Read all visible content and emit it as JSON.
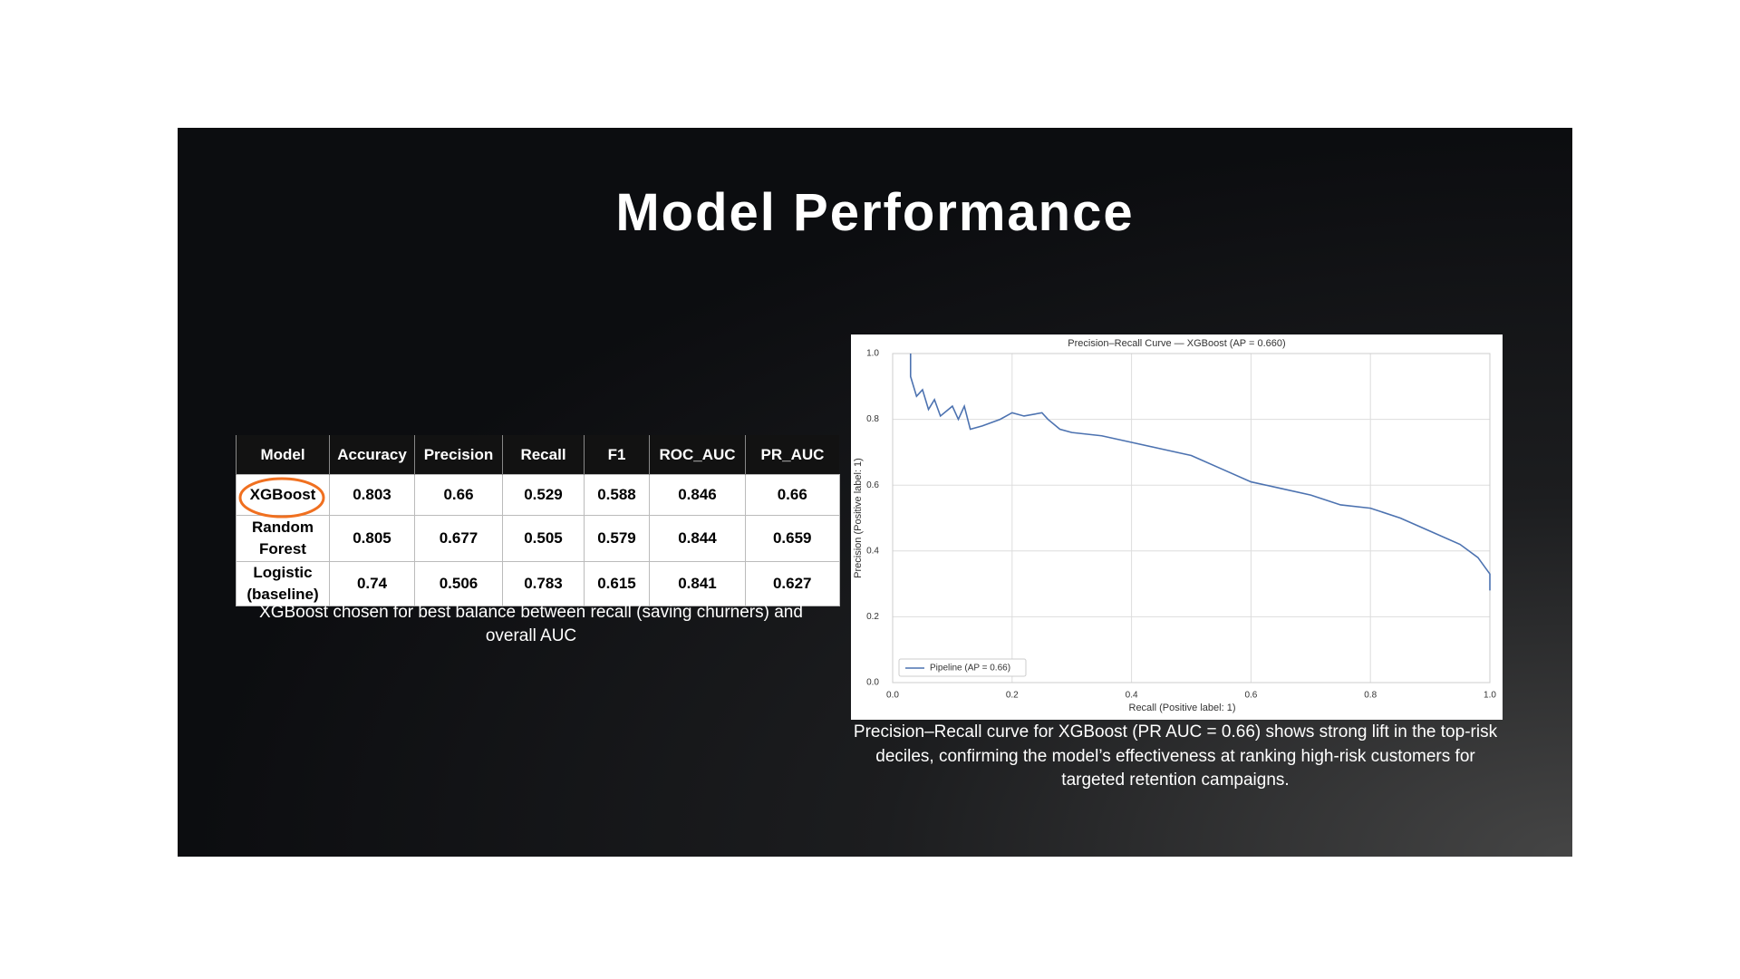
{
  "title": "Model Performance",
  "table": {
    "header": [
      "Model",
      "Accuracy",
      "Precision",
      "Recall",
      "F1",
      "ROC_AUC",
      "PR_AUC"
    ],
    "rows": [
      [
        "XGBoost",
        "0.803",
        "0.66",
        "0.529",
        "0.588",
        "0.846",
        "0.66"
      ],
      [
        "Random Forest",
        "0.805",
        "0.677",
        "0.505",
        "0.579",
        "0.844",
        "0.659"
      ],
      [
        "Logistic (baseline)",
        "0.74",
        "0.506",
        "0.783",
        "0.615",
        "0.841",
        "0.627"
      ]
    ],
    "caption": "XGBoost chosen for best balance between recall (saving churners) and overall AUC"
  },
  "chart_data": {
    "type": "line",
    "title": "Precision–Recall Curve — XGBoost (AP = 0.660)",
    "x_label": "Recall (Positive label: 1)",
    "y_label": "Precision (Positive label: 1)",
    "x": [
      0.03,
      0.03,
      0.04,
      0.05,
      0.06,
      0.07,
      0.08,
      0.1,
      0.11,
      0.12,
      0.13,
      0.15,
      0.18,
      0.2,
      0.22,
      0.25,
      0.26,
      0.28,
      0.3,
      0.35,
      0.4,
      0.45,
      0.5,
      0.55,
      0.6,
      0.65,
      0.7,
      0.75,
      0.8,
      0.85,
      0.9,
      0.95,
      0.98,
      1.0,
      1.0
    ],
    "series": [
      {
        "name": "Pipeline (AP = 0.66)",
        "color": "#4c72b0",
        "values": [
          1.0,
          0.93,
          0.87,
          0.89,
          0.83,
          0.86,
          0.81,
          0.84,
          0.8,
          0.84,
          0.77,
          0.78,
          0.8,
          0.82,
          0.81,
          0.82,
          0.8,
          0.77,
          0.76,
          0.75,
          0.73,
          0.71,
          0.69,
          0.65,
          0.61,
          0.59,
          0.57,
          0.54,
          0.53,
          0.5,
          0.46,
          0.42,
          0.38,
          0.33,
          0.28
        ]
      }
    ],
    "xlim": [
      0,
      1
    ],
    "ylim": [
      0,
      1
    ],
    "xticks": [
      {
        "value": 0,
        "label": "0.0"
      },
      0.2,
      0.4,
      0.6,
      0.8,
      {
        "value": 1,
        "label": "1.0"
      }
    ],
    "yticks": [
      {
        "value": 0,
        "label": "0.0"
      },
      0.2,
      0.4,
      0.6,
      0.8,
      {
        "value": 1,
        "label": "1.0"
      }
    ],
    "grid": true,
    "legend": "lower left"
  },
  "chart_caption": "Precision–Recall curve for XGBoost (PR AUC = 0.66) shows strong lift in the top-risk deciles, confirming the model’s effectiveness at ranking high-risk customers for targeted retention campaigns."
}
